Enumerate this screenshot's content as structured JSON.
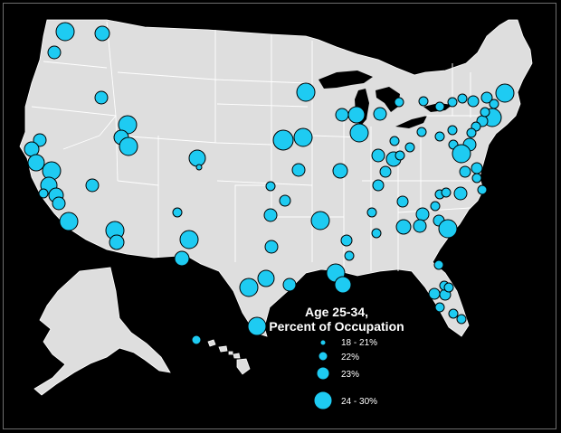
{
  "legend": {
    "title_line1": "Age 25-34,",
    "title_line2": "Percent of Occupation",
    "items": [
      {
        "label": "18 - 21%",
        "size_class": "1"
      },
      {
        "label": "22%",
        "size_class": "2"
      },
      {
        "label": "23%",
        "size_class": "3"
      },
      {
        "label": "24 - 30%",
        "size_class": "4"
      }
    ]
  },
  "colors": {
    "background": "#000000",
    "land": "#dedede",
    "borders": "#ffffff",
    "bubble_fill": "#1ecbf2",
    "bubble_stroke": "#000000"
  }
}
